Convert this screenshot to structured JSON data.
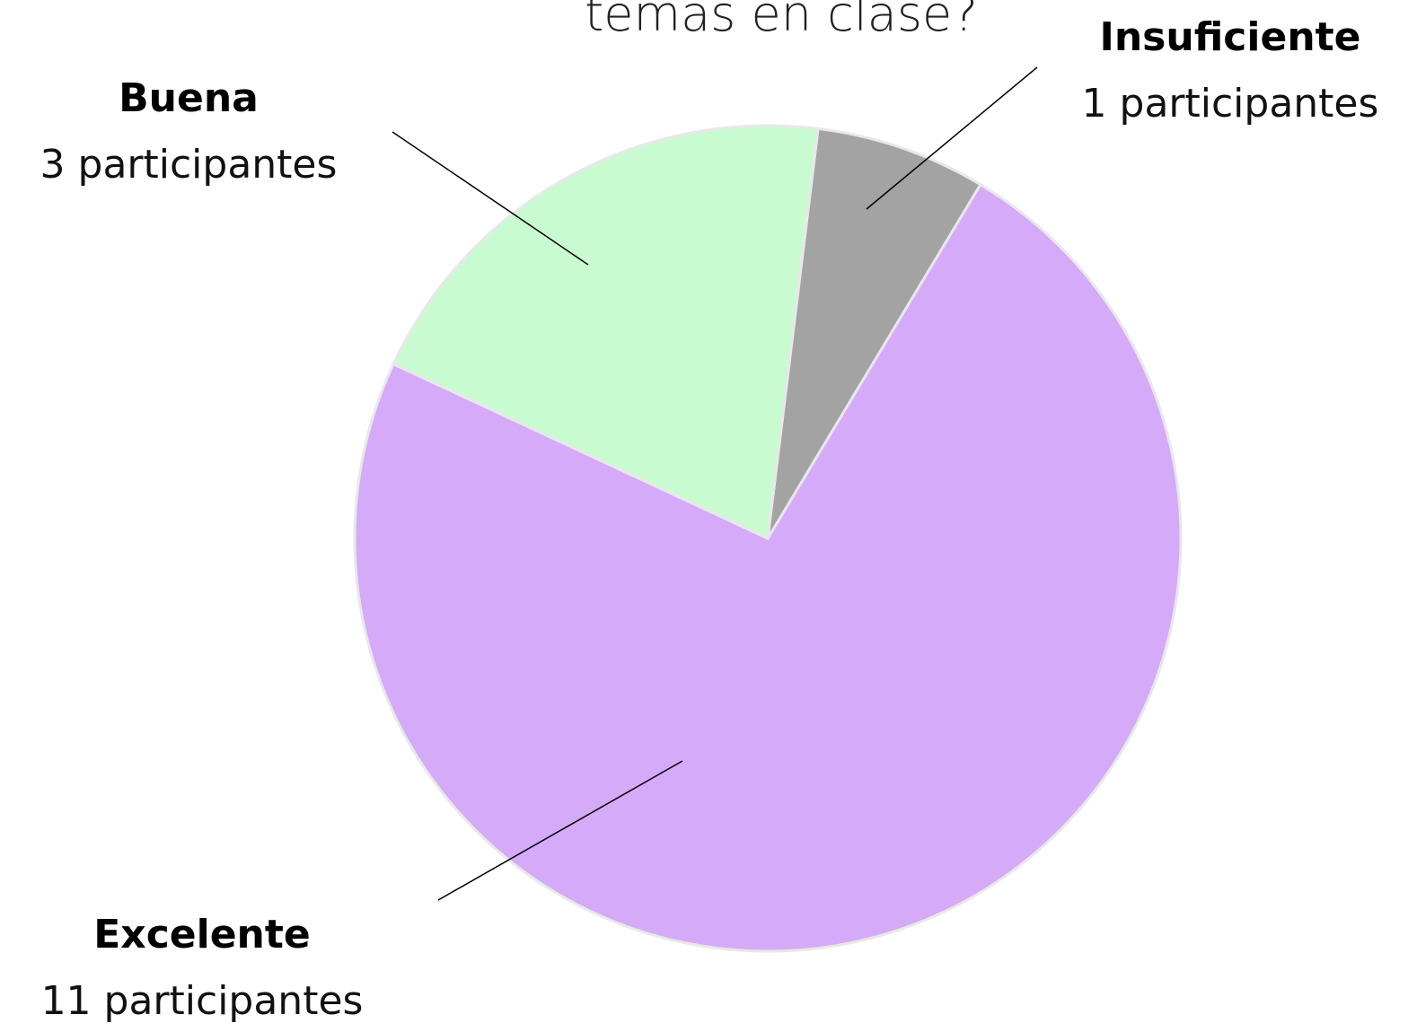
{
  "chart_data": {
    "type": "pie",
    "title": "temas en clase?",
    "categories": [
      "Insuficiente",
      "Excelente",
      "Buena"
    ],
    "values": [
      1,
      11,
      3
    ],
    "value_labels": [
      "1 participantes",
      "11 participantes",
      "3 participantes"
    ],
    "colors": [
      "#a3a3a3",
      "#d5aaf9",
      "#c9fbd1"
    ]
  }
}
